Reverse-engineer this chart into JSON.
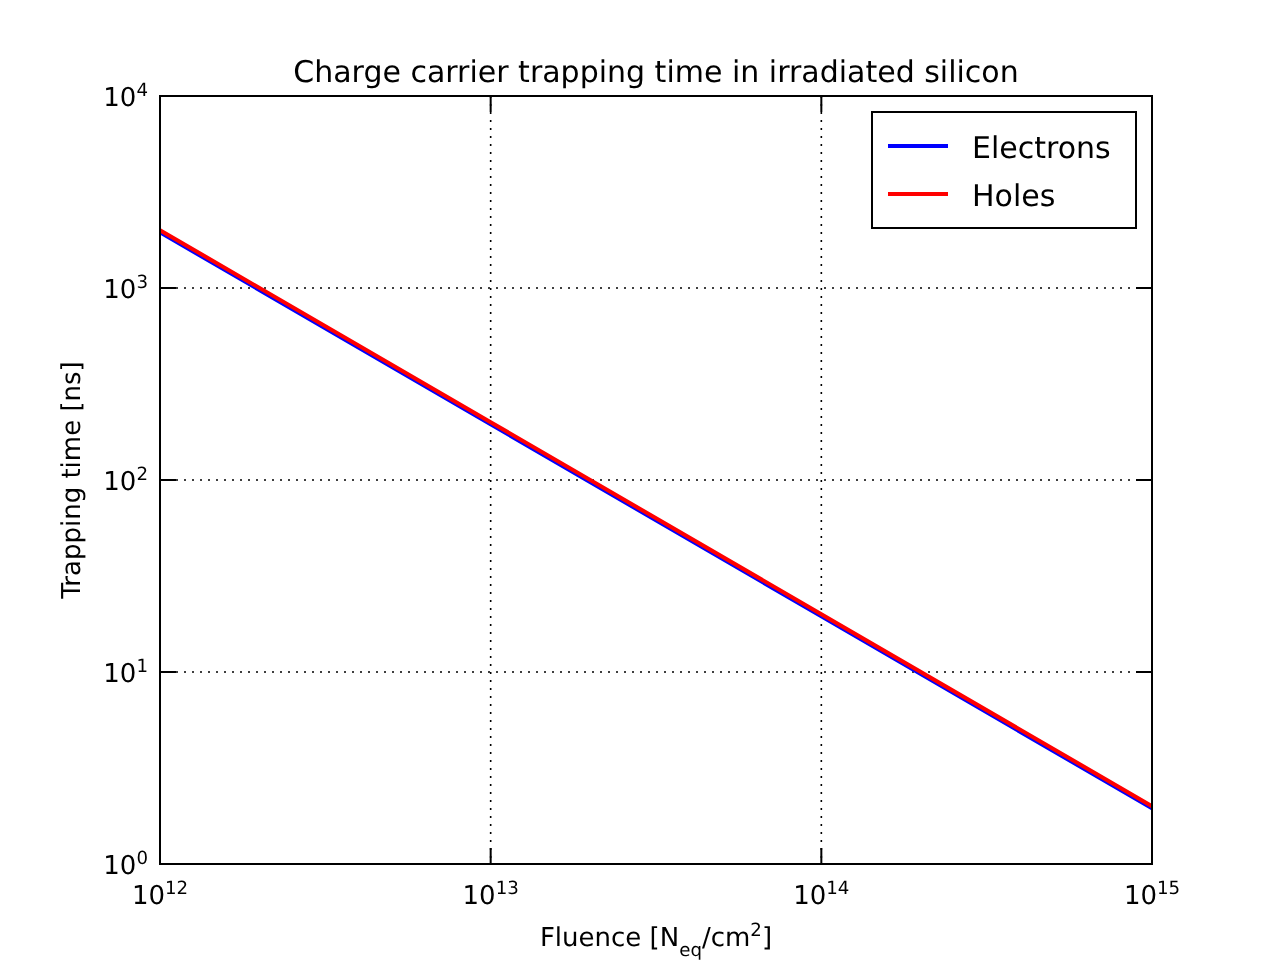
{
  "chart_data": {
    "type": "line",
    "title": "Charge carrier trapping time in irradiated silicon",
    "xlabel": "Fluence [N$_{eq}$/cm$^{2}$]",
    "ylabel": "Trapping time [ns]",
    "log": "xy",
    "xlim": [
      1000000000000.0,
      1000000000000000.0
    ],
    "ylim": [
      1,
      10000
    ],
    "xticks": [
      {
        "value": 1000000000000.0,
        "label": "10$^{12}$"
      },
      {
        "value": 10000000000000.0,
        "label": "10$^{13}$"
      },
      {
        "value": 100000000000000.0,
        "label": "10$^{14}$"
      },
      {
        "value": 1000000000000000.0,
        "label": "10$^{15}$"
      }
    ],
    "yticks": [
      {
        "value": 1,
        "label": "10$^{0}$"
      },
      {
        "value": 10,
        "label": "10$^{1}$"
      },
      {
        "value": 100,
        "label": "10$^{2}$"
      },
      {
        "value": 1000,
        "label": "10$^{3}$"
      },
      {
        "value": 10000,
        "label": "10$^{4}$"
      }
    ],
    "x": [
      1000000000000.0,
      10000000000000.0,
      100000000000000.0,
      1000000000000000.0
    ],
    "series": [
      {
        "name": "Electrons",
        "color": "#0000ff",
        "values": [
          1950,
          195,
          19.5,
          1.95
        ]
      },
      {
        "name": "Holes",
        "color": "#ff0000",
        "values": [
          2000,
          200,
          20,
          2
        ]
      }
    ],
    "grid": true,
    "legend": "top right",
    "marker": "none",
    "line_style": "solid"
  }
}
